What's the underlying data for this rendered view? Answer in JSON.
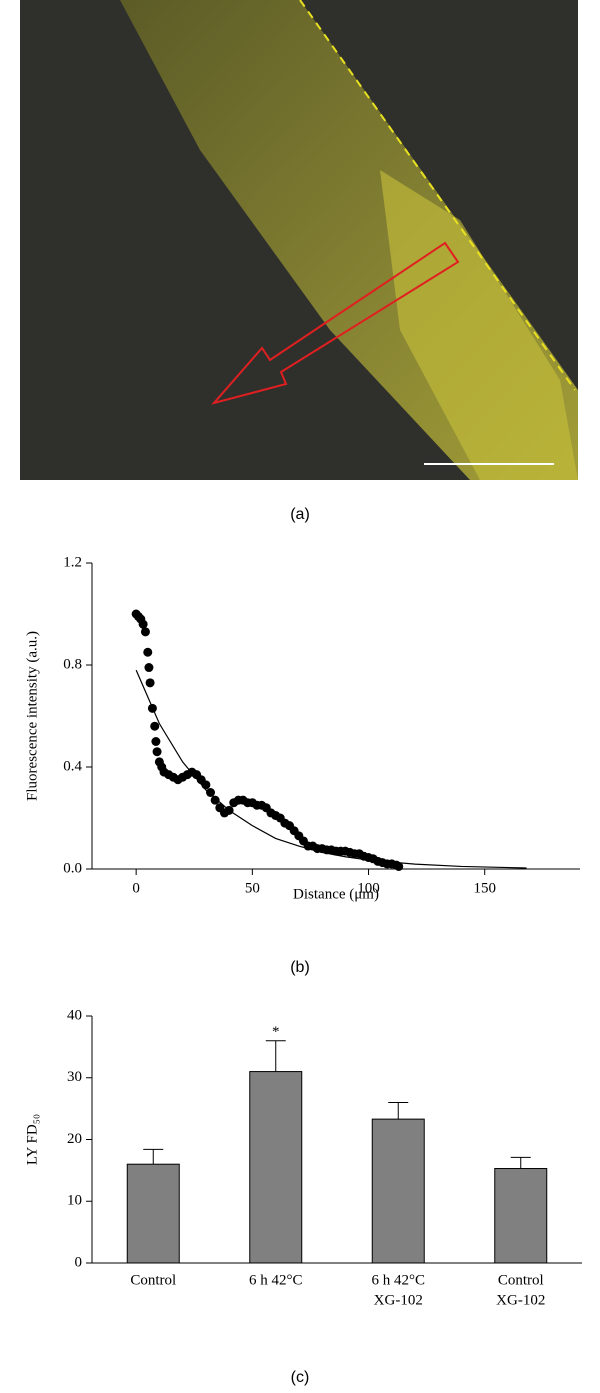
{
  "chart_data": [
    {
      "type": "image",
      "caption": "(a)"
    },
    {
      "type": "scatter",
      "caption": "(b)",
      "xlabel": "Distance (μm)",
      "ylabel": "Fluorescence intensity (a.u.)",
      "xlim": [
        -19,
        191
      ],
      "xticks": [
        0,
        50,
        100,
        150
      ],
      "ylim": [
        0,
        1.2
      ],
      "yticks": [
        {
          "value": 0,
          "label": "0.0"
        },
        0.4,
        0.8,
        1.2
      ],
      "series": [
        {
          "type": "scatter",
          "color": "#000000",
          "x": [
            0,
            1,
            2,
            3,
            4,
            5,
            5.5,
            6,
            7,
            8,
            8.5,
            9,
            10,
            11,
            12,
            14,
            16,
            18,
            20,
            22,
            24,
            26,
            28,
            30,
            32,
            34,
            36,
            38,
            40,
            42,
            44,
            46,
            48,
            50,
            52,
            54,
            56,
            58,
            60,
            62,
            64,
            66,
            68,
            70,
            72,
            74,
            76,
            78,
            80,
            82,
            84,
            86,
            88,
            90,
            92,
            94,
            96,
            98,
            100,
            102,
            104,
            106,
            108,
            110,
            112,
            113
          ],
          "values": [
            1.0,
            0.99,
            0.98,
            0.96,
            0.93,
            0.85,
            0.79,
            0.73,
            0.63,
            0.56,
            0.5,
            0.46,
            0.42,
            0.4,
            0.38,
            0.37,
            0.36,
            0.35,
            0.36,
            0.37,
            0.38,
            0.37,
            0.35,
            0.33,
            0.3,
            0.27,
            0.24,
            0.22,
            0.23,
            0.26,
            0.27,
            0.27,
            0.26,
            0.26,
            0.25,
            0.25,
            0.24,
            0.22,
            0.21,
            0.2,
            0.18,
            0.17,
            0.15,
            0.13,
            0.11,
            0.09,
            0.09,
            0.08,
            0.08,
            0.075,
            0.075,
            0.07,
            0.07,
            0.07,
            0.065,
            0.06,
            0.06,
            0.05,
            0.045,
            0.04,
            0.03,
            0.025,
            0.02,
            0.02,
            0.015,
            0.01
          ]
        },
        {
          "type": "line",
          "color": "#000000",
          "x": [
            0,
            10,
            20,
            30,
            40,
            50,
            60,
            70,
            80,
            90,
            100,
            120,
            140,
            168
          ],
          "values": [
            0.78,
            0.57,
            0.42,
            0.31,
            0.23,
            0.17,
            0.12,
            0.09,
            0.065,
            0.048,
            0.035,
            0.019,
            0.01,
            0.004
          ]
        }
      ]
    },
    {
      "type": "bar",
      "caption": "(c)",
      "ylabel": "LY FD₅₀",
      "categories": [
        [
          "Control"
        ],
        [
          "6 h 42°C"
        ],
        [
          "6 h 42°C",
          "XG-102"
        ],
        [
          "Control",
          "XG-102"
        ]
      ],
      "values": [
        16,
        31,
        23.3,
        15.3
      ],
      "errors": [
        2.4,
        5,
        2.7,
        1.8
      ],
      "annotations": [
        "",
        "*",
        "",
        ""
      ],
      "color": "#808080",
      "ylim": [
        0,
        40
      ],
      "yticks": [
        0,
        10,
        20,
        30,
        40
      ]
    }
  ]
}
